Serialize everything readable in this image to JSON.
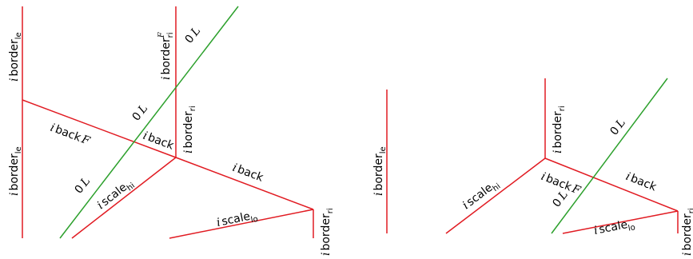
{
  "colors": {
    "line_red": "#e11b22",
    "line_green": "#2ca02c",
    "text": "#000000"
  },
  "labels": {
    "i": "i",
    "border": "border",
    "back": "back",
    "scale": "scale",
    "le": "le",
    "ri": "ri",
    "hi": "hi",
    "lo": "lo",
    "F": "F",
    "zero": "0",
    "L": "L"
  }
}
